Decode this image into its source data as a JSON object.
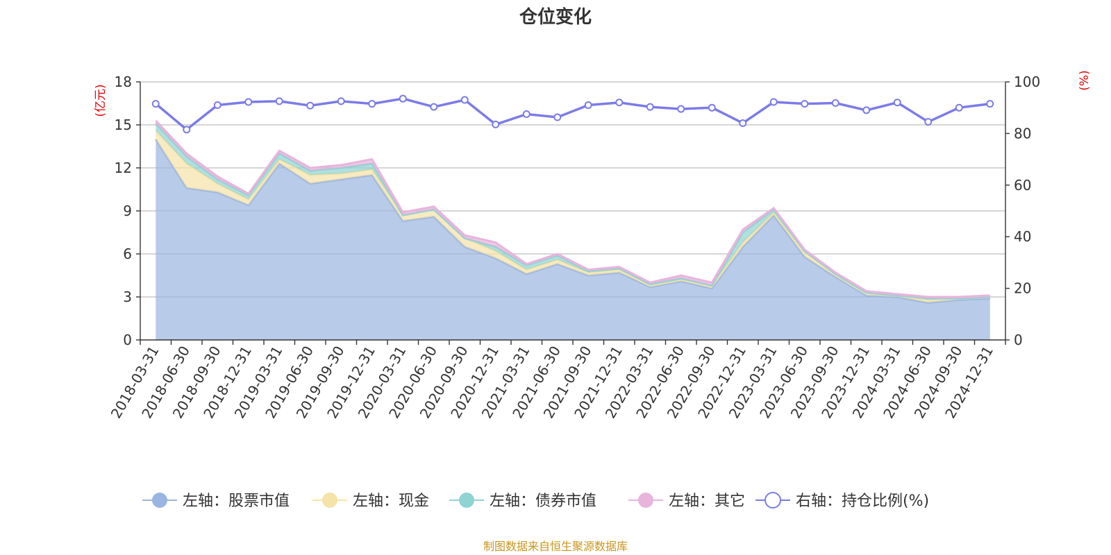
{
  "chart_data": {
    "type": "area",
    "title": "仓位变化",
    "left_axis_unit": "(亿元)",
    "right_axis_unit": "(%)",
    "left_ylim": [
      0,
      18
    ],
    "left_ticks": [
      0,
      3,
      6,
      9,
      12,
      15,
      18
    ],
    "right_ylim": [
      0,
      100
    ],
    "right_ticks": [
      0,
      20,
      40,
      60,
      80,
      100
    ],
    "legend_position": "bottom-center",
    "categories": [
      "2018-03-31",
      "2018-06-30",
      "2018-09-30",
      "2018-12-31",
      "2019-03-31",
      "2019-06-30",
      "2019-09-30",
      "2019-12-31",
      "2020-03-31",
      "2020-06-30",
      "2020-09-30",
      "2020-12-31",
      "2021-03-31",
      "2021-06-30",
      "2021-09-30",
      "2021-12-31",
      "2022-03-31",
      "2022-06-30",
      "2022-09-30",
      "2022-12-31",
      "2023-03-31",
      "2023-06-30",
      "2023-09-30",
      "2023-12-31",
      "2024-03-31",
      "2024-06-30",
      "2024-09-30",
      "2024-12-31"
    ],
    "series": [
      {
        "name": "左轴：股票市值",
        "axis": "left",
        "kind": "stacked-area",
        "color": "#9ab5e0",
        "values": [
          14.0,
          10.6,
          10.3,
          9.4,
          12.3,
          10.9,
          11.2,
          11.5,
          8.3,
          8.6,
          6.5,
          5.7,
          4.6,
          5.3,
          4.5,
          4.7,
          3.7,
          4.1,
          3.6,
          6.5,
          8.7,
          5.8,
          4.4,
          3.1,
          3.0,
          2.6,
          2.8,
          2.9
        ]
      },
      {
        "name": "左轴：现金",
        "axis": "left",
        "kind": "stacked-area",
        "color": "#f5e3a8",
        "values": [
          0.6,
          1.7,
          0.6,
          0.4,
          0.3,
          0.6,
          0.4,
          0.4,
          0.4,
          0.5,
          0.6,
          0.5,
          0.3,
          0.3,
          0.2,
          0.2,
          0.1,
          0.1,
          0.2,
          0.3,
          0.2,
          0.3,
          0.2,
          0.2,
          0.1,
          0.2,
          0.1,
          0.1
        ]
      },
      {
        "name": "左轴：债券市值",
        "axis": "left",
        "kind": "stacked-area",
        "color": "#8fd3d3",
        "values": [
          0.5,
          0.5,
          0.3,
          0.3,
          0.4,
          0.3,
          0.4,
          0.4,
          0.0,
          0.0,
          0.0,
          0.3,
          0.3,
          0.3,
          0.1,
          0.1,
          0.1,
          0.1,
          0.0,
          0.7,
          0.2,
          0.1,
          0.0,
          0.0,
          0.0,
          0.1,
          0.0,
          0.0
        ]
      },
      {
        "name": "左轴：其它",
        "axis": "left",
        "kind": "stacked-area",
        "color": "#e8b4dc",
        "values": [
          0.2,
          0.2,
          0.2,
          0.1,
          0.2,
          0.2,
          0.2,
          0.3,
          0.2,
          0.2,
          0.2,
          0.3,
          0.1,
          0.1,
          0.1,
          0.1,
          0.1,
          0.2,
          0.2,
          0.2,
          0.1,
          0.1,
          0.1,
          0.1,
          0.1,
          0.1,
          0.1,
          0.1
        ]
      },
      {
        "name": "右轴：持仓比例(%)",
        "axis": "right",
        "kind": "line",
        "color": "#7b7be8",
        "values": [
          91.5,
          81.5,
          91.0,
          92.2,
          92.5,
          90.8,
          92.5,
          91.5,
          93.5,
          90.3,
          93.0,
          83.5,
          87.5,
          86.3,
          91.0,
          92.0,
          90.3,
          89.5,
          90.0,
          84.0,
          92.2,
          91.5,
          91.8,
          89.0,
          92.0,
          84.5,
          90.0,
          91.5
        ]
      }
    ]
  },
  "source_note": "制图数据来自恒生聚源数据库"
}
